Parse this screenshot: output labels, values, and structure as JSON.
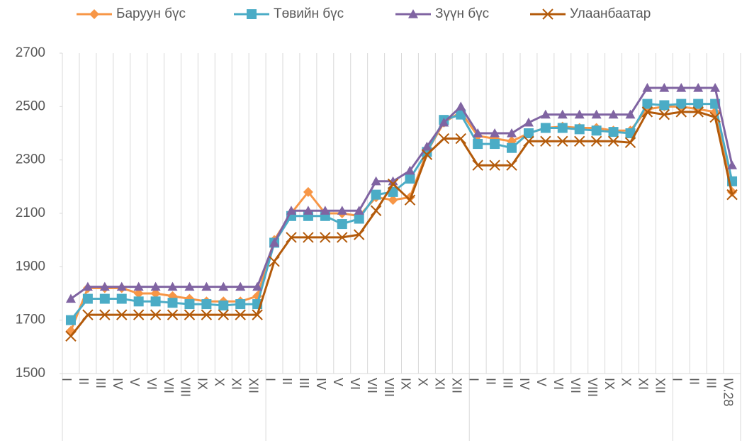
{
  "chart_data": {
    "type": "line",
    "categories": [
      "I",
      "II",
      "III",
      "IV",
      "V",
      "VI",
      "VII",
      "VIII",
      "IX",
      "X",
      "XI",
      "XII",
      "I",
      "II",
      "III",
      "IV",
      "V",
      "VI",
      "VII",
      "VIII",
      "IX",
      "X",
      "XI",
      "XII",
      "I",
      "II",
      "III",
      "IV",
      "V",
      "VI",
      "VII",
      "VIII",
      "IX",
      "X",
      "XI",
      "XII",
      "I",
      "II",
      "III",
      "IV.28"
    ],
    "series": [
      {
        "name": "Баруун бүс",
        "color": "#f79646",
        "marker": "diamond",
        "values": [
          1660,
          1820,
          1820,
          1820,
          1800,
          1800,
          1790,
          1780,
          1770,
          1770,
          1770,
          1790,
          2000,
          2100,
          2180,
          2100,
          2100,
          2090,
          2160,
          2150,
          2160,
          2330,
          2440,
          2480,
          2390,
          2380,
          2370,
          2400,
          2420,
          2425,
          2420,
          2420,
          2410,
          2410,
          2490,
          2500,
          2500,
          2490,
          2480,
          2180
        ]
      },
      {
        "name": "Төвийн бүс",
        "color": "#4bacc6",
        "marker": "square",
        "values": [
          1700,
          1780,
          1780,
          1780,
          1770,
          1770,
          1765,
          1760,
          1760,
          1755,
          1760,
          1760,
          1990,
          2090,
          2090,
          2090,
          2060,
          2080,
          2170,
          2180,
          2230,
          2330,
          2450,
          2470,
          2360,
          2360,
          2345,
          2400,
          2420,
          2420,
          2415,
          2410,
          2405,
          2400,
          2510,
          2505,
          2510,
          2510,
          2510,
          2220
        ]
      },
      {
        "name": "Зүүн бүс",
        "color": "#8064a2",
        "marker": "triangle",
        "values": [
          1780,
          1825,
          1825,
          1825,
          1825,
          1825,
          1825,
          1825,
          1825,
          1825,
          1825,
          1825,
          1990,
          2110,
          2110,
          2110,
          2110,
          2110,
          2220,
          2220,
          2260,
          2350,
          2440,
          2500,
          2400,
          2400,
          2400,
          2440,
          2470,
          2470,
          2470,
          2470,
          2470,
          2470,
          2570,
          2570,
          2570,
          2570,
          2570,
          2280
        ]
      },
      {
        "name": "Улаанбаатар",
        "color": "#b35a0a",
        "marker": "x",
        "values": [
          1640,
          1720,
          1720,
          1720,
          1720,
          1720,
          1720,
          1720,
          1720,
          1720,
          1720,
          1720,
          1920,
          2010,
          2010,
          2010,
          2010,
          2020,
          2110,
          2210,
          2150,
          2320,
          2380,
          2380,
          2280,
          2280,
          2280,
          2370,
          2370,
          2370,
          2370,
          2370,
          2370,
          2365,
          2480,
          2470,
          2480,
          2480,
          2460,
          2170
        ]
      }
    ],
    "ylim": [
      1500,
      2700
    ],
    "yticks": [
      1500,
      1700,
      1900,
      2100,
      2300,
      2500,
      2700
    ],
    "grid": true,
    "legend": "top"
  }
}
